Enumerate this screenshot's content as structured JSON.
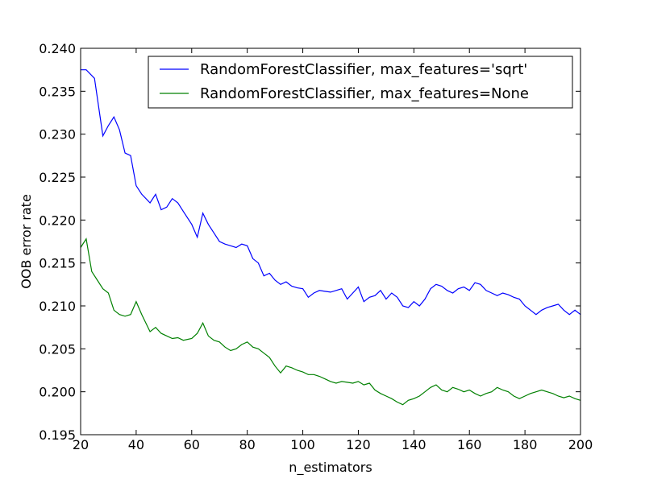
{
  "chart_data": {
    "type": "line",
    "title": "",
    "xlabel": "n_estimators",
    "ylabel": "OOB error rate",
    "xlim": [
      20,
      200
    ],
    "ylim": [
      0.195,
      0.24
    ],
    "xticks": [
      "20",
      "40",
      "60",
      "80",
      "100",
      "120",
      "140",
      "160",
      "180",
      "200"
    ],
    "yticks": [
      "0.195",
      "0.200",
      "0.205",
      "0.210",
      "0.215",
      "0.220",
      "0.225",
      "0.230",
      "0.235",
      "0.240"
    ],
    "legend_position": "top-right",
    "grid": false,
    "series": [
      {
        "name": "RandomForestClassifier, max_features='sqrt'",
        "color": "#0000ff",
        "x": [
          20,
          22,
          25,
          28,
          30,
          32,
          34,
          36,
          38,
          40,
          42,
          45,
          47,
          49,
          51,
          53,
          55,
          57,
          60,
          62,
          64,
          66,
          68,
          70,
          72,
          74,
          76,
          78,
          80,
          82,
          84,
          86,
          88,
          90,
          92,
          94,
          96,
          98,
          100,
          102,
          104,
          106,
          108,
          110,
          112,
          114,
          116,
          118,
          120,
          122,
          124,
          126,
          128,
          130,
          132,
          134,
          136,
          138,
          140,
          142,
          144,
          146,
          148,
          150,
          152,
          154,
          156,
          158,
          160,
          162,
          164,
          166,
          168,
          170,
          172,
          174,
          176,
          178,
          180,
          182,
          184,
          186,
          188,
          190,
          192,
          194,
          196,
          198,
          200
        ],
        "values": [
          0.2375,
          0.2375,
          0.2365,
          0.2298,
          0.231,
          0.232,
          0.2305,
          0.2278,
          0.2275,
          0.224,
          0.223,
          0.222,
          0.223,
          0.2212,
          0.2215,
          0.2225,
          0.222,
          0.221,
          0.2195,
          0.218,
          0.2208,
          0.2195,
          0.2185,
          0.2175,
          0.2172,
          0.217,
          0.2168,
          0.2172,
          0.217,
          0.2155,
          0.215,
          0.2135,
          0.2138,
          0.213,
          0.2125,
          0.2128,
          0.2123,
          0.2121,
          0.212,
          0.211,
          0.2115,
          0.2118,
          0.2117,
          0.2116,
          0.2118,
          0.212,
          0.2108,
          0.2115,
          0.2122,
          0.2105,
          0.211,
          0.2112,
          0.2118,
          0.2108,
          0.2115,
          0.211,
          0.21,
          0.2098,
          0.2105,
          0.21,
          0.2108,
          0.212,
          0.2125,
          0.2123,
          0.2118,
          0.2115,
          0.212,
          0.2122,
          0.2118,
          0.2127,
          0.2125,
          0.2118,
          0.2115,
          0.2112,
          0.2115,
          0.2113,
          0.211,
          0.2108,
          0.21,
          0.2095,
          0.209,
          0.2095,
          0.2098,
          0.21,
          0.2102,
          0.2095,
          0.209,
          0.2095,
          0.209
        ]
      },
      {
        "name": "RandomForestClassifier, max_features=None",
        "color": "#008000",
        "x": [
          20,
          22,
          24,
          26,
          28,
          30,
          32,
          34,
          36,
          38,
          40,
          42,
          45,
          47,
          49,
          51,
          53,
          55,
          57,
          60,
          62,
          64,
          66,
          68,
          70,
          72,
          74,
          76,
          78,
          80,
          82,
          84,
          86,
          88,
          90,
          92,
          94,
          96,
          98,
          100,
          102,
          104,
          106,
          108,
          110,
          112,
          114,
          116,
          118,
          120,
          122,
          124,
          126,
          128,
          130,
          132,
          134,
          136,
          138,
          140,
          142,
          144,
          146,
          148,
          150,
          152,
          154,
          156,
          158,
          160,
          162,
          164,
          166,
          168,
          170,
          172,
          174,
          176,
          178,
          180,
          182,
          184,
          186,
          188,
          190,
          192,
          194,
          196,
          198,
          200
        ],
        "values": [
          0.2168,
          0.2178,
          0.214,
          0.213,
          0.212,
          0.2115,
          0.2095,
          0.209,
          0.2088,
          0.209,
          0.2105,
          0.209,
          0.207,
          0.2075,
          0.2068,
          0.2065,
          0.2062,
          0.2063,
          0.206,
          0.2062,
          0.2068,
          0.208,
          0.2065,
          0.206,
          0.2058,
          0.2052,
          0.2048,
          0.205,
          0.2055,
          0.2058,
          0.2052,
          0.205,
          0.2045,
          0.204,
          0.203,
          0.2022,
          0.203,
          0.2028,
          0.2025,
          0.2023,
          0.202,
          0.202,
          0.2018,
          0.2015,
          0.2012,
          0.201,
          0.2012,
          0.2011,
          0.201,
          0.2012,
          0.2008,
          0.201,
          0.2002,
          0.1998,
          0.1995,
          0.1992,
          0.1988,
          0.1985,
          0.199,
          0.1992,
          0.1995,
          0.2,
          0.2005,
          0.2008,
          0.2002,
          0.2,
          0.2005,
          0.2003,
          0.2,
          0.2002,
          0.1998,
          0.1995,
          0.1998,
          0.2,
          0.2005,
          0.2002,
          0.2,
          0.1995,
          0.1992,
          0.1995,
          0.1998,
          0.2,
          0.2002,
          0.2,
          0.1998,
          0.1995,
          0.1993,
          0.1995,
          0.1992,
          0.199
        ]
      }
    ]
  }
}
